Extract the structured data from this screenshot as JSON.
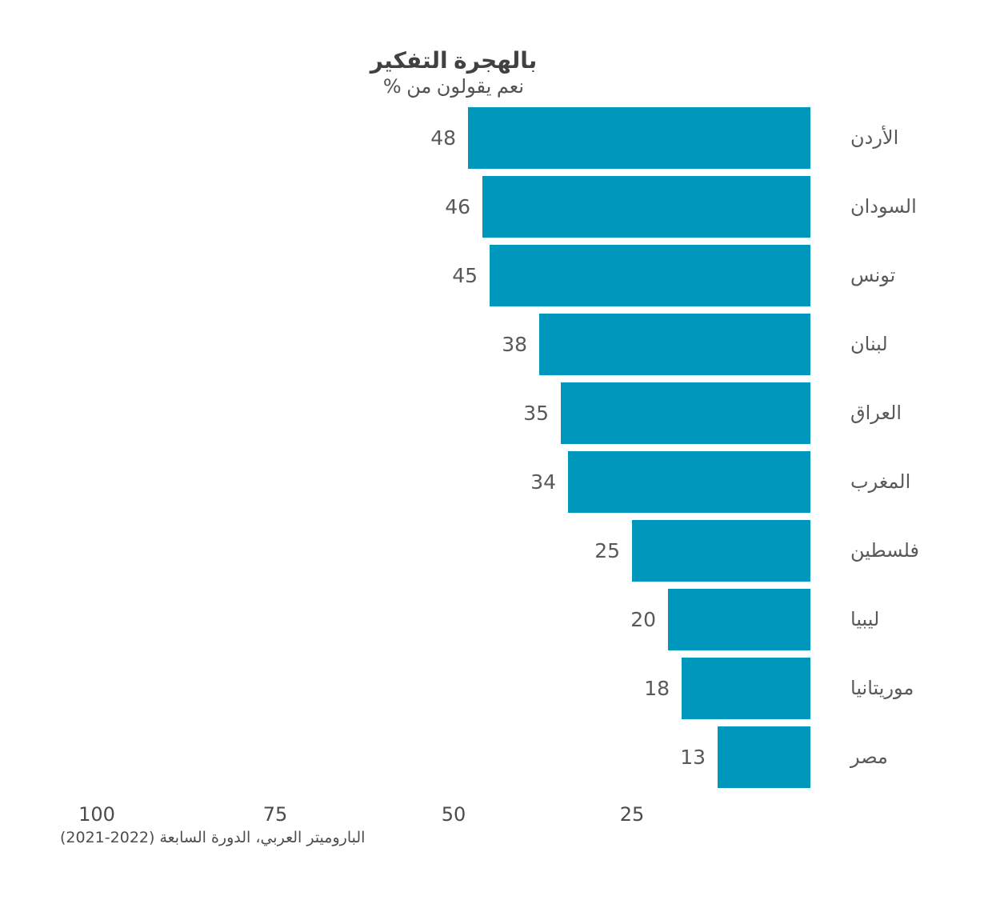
{
  "colors": {
    "bar": "#0097BC",
    "title_text": "#414042",
    "subtitle_text": "#515254",
    "label_text": "#58595B",
    "tick_text": "#4B4B4D",
    "source_text": "#4D4D4F",
    "background": "#FFFFFF"
  },
  "chart_data": {
    "type": "bar",
    "orientation": "horizontal-rtl",
    "title": "التفكير بالهجرة",
    "subtitle": "% من يقولون نعم",
    "categories": [
      "الأردن",
      "السودان",
      "تونس",
      "لبنان",
      "العراق",
      "المغرب",
      "فلسطين",
      "ليبيا",
      "موريتانيا",
      "مصر"
    ],
    "values": [
      48,
      46,
      45,
      38,
      35,
      34,
      25,
      20,
      18,
      13
    ],
    "value_labels_shown": true,
    "x_ticks": [
      "100",
      "75",
      "50",
      "25"
    ],
    "xlim": [
      0,
      100
    ],
    "grid": false,
    "legend": false,
    "xlabel": "",
    "ylabel": "",
    "source": "الباروميتر العربي، الدورة السابعة (2022-2021)"
  }
}
